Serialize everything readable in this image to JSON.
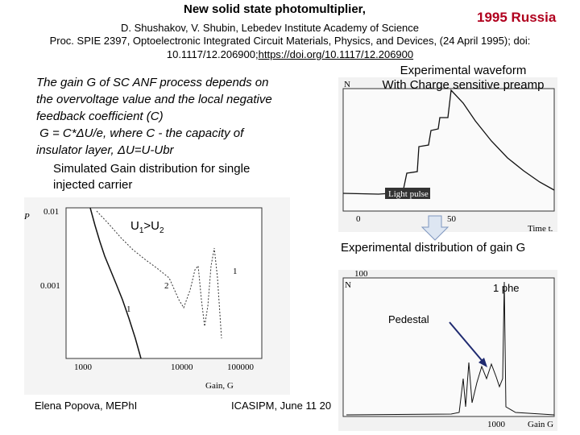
{
  "header": {
    "title": "New solid state photomultiplier,",
    "location": "1995 Russia",
    "authors": "D. Shushakov, V. Shubin, Lebedev Institute Academy of Science",
    "citation": [
      "Proc. SPIE 2397, Optoelectronic Integrated Circuit Materials, Physics, and Devices, (24 April 1995); doi:",
      "10.1117/12.206900;"
    ],
    "doi_link": "https://doi.org/10.1117/12.206900"
  },
  "body": {
    "lines": [
      "The gain  G of SC ANF process depends on",
      "the overvoltage value and the local negative",
      "feedback coefficient (C)",
      " G = C*ΔU/e, where C - the capacity of",
      "insulator layer, ΔU=U-Ubr"
    ]
  },
  "waveform": {
    "title": [
      "Experimental waveform",
      "With Charge sensitive preamp"
    ],
    "y_axis": "N",
    "pulse_label": "Light pulse",
    "xticks": [
      "0",
      "50"
    ],
    "x_axis": "Time t."
  },
  "simulation": {
    "title": [
      "Simulated Gain distribution for single",
      "injected carrier"
    ],
    "condition": [
      "U",
      "1",
      ">U",
      "2"
    ],
    "y_axis": "P",
    "yticks": [
      "0.01",
      "0.001"
    ],
    "xticks": [
      "1000",
      "10000",
      "100000"
    ],
    "x_axis": "Gain, G",
    "curve_labels": [
      "1",
      "2",
      "1"
    ]
  },
  "distribution": {
    "title": "Experimental distribution of gain G",
    "peak_label": "1 phe",
    "pedestal_label": "Pedestal",
    "y_axis": "N",
    "ytick": "100",
    "xtick": "1000",
    "x_axis": "Gain G"
  },
  "footer": {
    "author": "Elena Popova, MEPhI",
    "conference": "ICASIPM, June 11 20"
  }
}
